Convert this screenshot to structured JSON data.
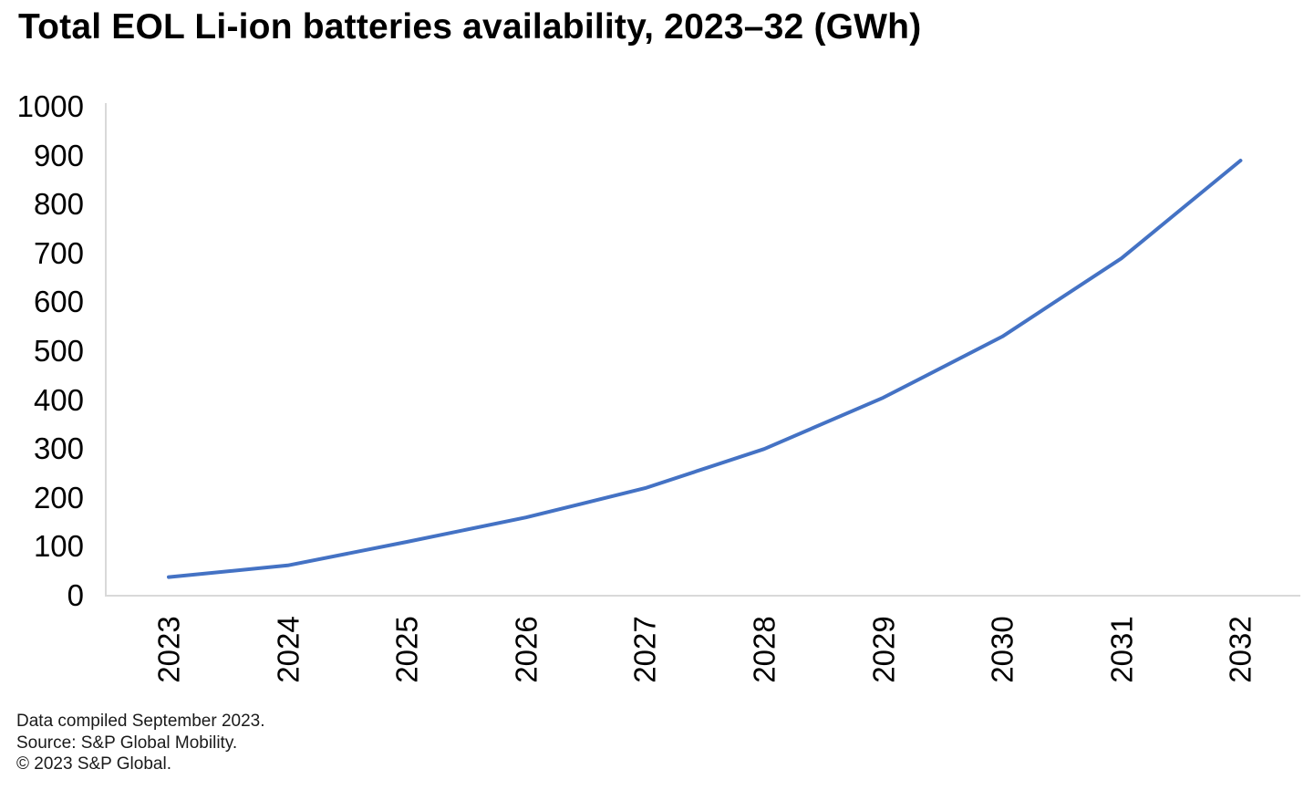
{
  "chart_data": {
    "type": "line",
    "title": "Total EOL Li-ion batteries availability, 2023–32 (GWh)",
    "x": [
      2023,
      2024,
      2025,
      2026,
      2027,
      2028,
      2029,
      2030,
      2031,
      2032
    ],
    "xtick_labels": [
      "2023",
      "2024",
      "2025",
      "2026",
      "2027",
      "2028",
      "2029",
      "2030",
      "2031",
      "2032"
    ],
    "series": [
      {
        "name": "Total EOL Li-ion batteries availability (GWh)",
        "values": [
          38,
          62,
          110,
          160,
          220,
          300,
          405,
          530,
          690,
          890
        ],
        "color": "#4472C4"
      }
    ],
    "xlabel": "",
    "ylabel": "",
    "ylim": [
      0,
      1000
    ],
    "yticks": [
      0,
      100,
      200,
      300,
      400,
      500,
      600,
      700,
      800,
      900,
      1000
    ],
    "grid": false,
    "legend": "none",
    "axis_color": "#D9D9D9"
  },
  "footer": {
    "lines": [
      "Data compiled September 2023.",
      "Source: S&P Global Mobility.",
      "© 2023 S&P Global."
    ]
  }
}
